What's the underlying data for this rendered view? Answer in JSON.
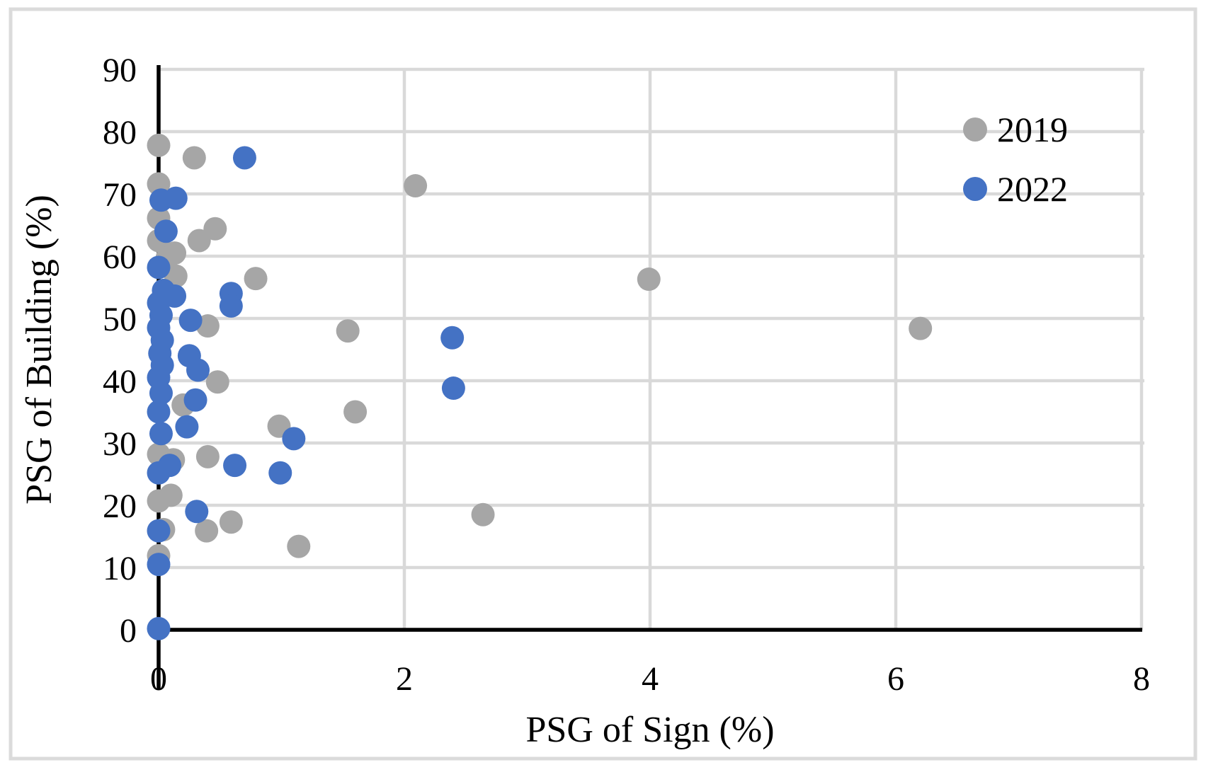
{
  "figure": {
    "background": "#ffffff",
    "border_color": "#dbdbdb"
  },
  "chart_data": {
    "type": "scatter",
    "title": "",
    "xlabel": "PSG of Sign (%)",
    "ylabel": "PSG of Building (%)",
    "xlim": [
      0,
      8
    ],
    "ylim": [
      0,
      90
    ],
    "x_ticks": [
      "0",
      "2",
      "4",
      "6",
      "8"
    ],
    "x_tick_values": [
      0,
      2,
      4,
      6,
      8
    ],
    "y_ticks": [
      "0",
      "10",
      "20",
      "30",
      "40",
      "50",
      "60",
      "70",
      "80",
      "90"
    ],
    "y_tick_values": [
      0,
      10,
      20,
      30,
      40,
      50,
      60,
      70,
      80,
      90
    ],
    "grid": true,
    "gridline_color": "#d9d9d9",
    "axis_color": "#000000",
    "legend_position": "top-right-inside",
    "series": [
      {
        "name": "2019",
        "color": "#a6a6a6",
        "points": [
          [
            0.0,
            77.8
          ],
          [
            0.29,
            75.8
          ],
          [
            2.09,
            71.3
          ],
          [
            0.0,
            71.6
          ],
          [
            0.0,
            66.1
          ],
          [
            0.46,
            64.4
          ],
          [
            0.0,
            62.5
          ],
          [
            0.33,
            62.5
          ],
          [
            0.07,
            59.7
          ],
          [
            0.13,
            60.5
          ],
          [
            0.14,
            56.8
          ],
          [
            0.79,
            56.4
          ],
          [
            3.99,
            56.3
          ],
          [
            1.54,
            48.0
          ],
          [
            6.2,
            48.4
          ],
          [
            0.4,
            48.8
          ],
          [
            0.48,
            39.8
          ],
          [
            0.2,
            36.1
          ],
          [
            1.6,
            35.0
          ],
          [
            0.98,
            32.7
          ],
          [
            0.0,
            28.2
          ],
          [
            0.12,
            27.3
          ],
          [
            0.4,
            27.8
          ],
          [
            0.1,
            21.6
          ],
          [
            0.0,
            20.7
          ],
          [
            2.64,
            18.5
          ],
          [
            0.39,
            15.9
          ],
          [
            0.59,
            17.3
          ],
          [
            1.14,
            13.4
          ],
          [
            0.04,
            16.1
          ],
          [
            0.0,
            11.9
          ]
        ]
      },
      {
        "name": "2022",
        "color": "#4472c4",
        "points": [
          [
            0.7,
            75.8
          ],
          [
            0.02,
            69.0
          ],
          [
            0.14,
            69.3
          ],
          [
            0.06,
            64.0
          ],
          [
            0.0,
            58.2
          ],
          [
            0.04,
            54.5
          ],
          [
            0.13,
            53.6
          ],
          [
            0.59,
            54.0
          ],
          [
            0.59,
            52.0
          ],
          [
            0.0,
            52.5
          ],
          [
            0.02,
            50.5
          ],
          [
            0.26,
            49.7
          ],
          [
            0.0,
            48.5
          ],
          [
            0.03,
            46.5
          ],
          [
            2.39,
            46.9
          ],
          [
            0.01,
            44.4
          ],
          [
            0.25,
            44.0
          ],
          [
            0.32,
            41.7
          ],
          [
            0.03,
            42.5
          ],
          [
            0.0,
            40.5
          ],
          [
            2.4,
            38.8
          ],
          [
            0.02,
            38.0
          ],
          [
            0.3,
            36.9
          ],
          [
            0.0,
            35.0
          ],
          [
            0.23,
            32.6
          ],
          [
            0.02,
            31.5
          ],
          [
            1.1,
            30.7
          ],
          [
            0.09,
            26.4
          ],
          [
            0.0,
            25.2
          ],
          [
            0.62,
            26.4
          ],
          [
            0.99,
            25.2
          ],
          [
            0.31,
            19.0
          ],
          [
            0.0,
            15.9
          ],
          [
            0.0,
            10.5
          ],
          [
            0.0,
            0.2
          ]
        ]
      }
    ],
    "marker_radius_px": 16.5,
    "legend_marker_radius_px": 17
  },
  "legend": {
    "items": [
      {
        "label": "2019",
        "color": "#a6a6a6"
      },
      {
        "label": "2022",
        "color": "#4472c4"
      }
    ]
  }
}
